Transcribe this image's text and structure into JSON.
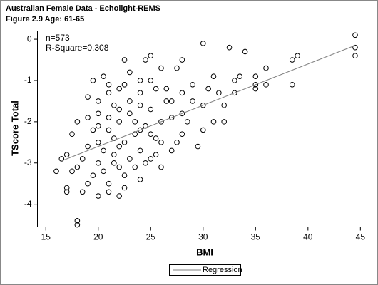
{
  "chart_data": {
    "type": "scatter",
    "title": "Australian Female Data - Echolight-REMS",
    "subtitle": "Figure 2.9 Age: 61-65",
    "annotations": [
      "n=573",
      "R-Square=0.308"
    ],
    "x_label": "BMI",
    "y_label": "TScore Total",
    "xlim": [
      14.2,
      46.1
    ],
    "ylim": [
      -4.55,
      0.2
    ],
    "xticks": [
      15,
      20,
      25,
      30,
      35,
      40,
      45
    ],
    "yticks": [
      0,
      -1,
      -2,
      -3,
      -4
    ],
    "color": "#000000",
    "x": [
      18,
      18,
      16,
      17,
      17,
      18.5,
      20,
      44.5,
      44.5,
      44.5,
      39,
      38.5,
      38.5,
      36,
      35,
      35,
      34,
      32.5,
      30,
      31,
      33,
      31,
      32,
      30,
      29,
      28,
      27.5,
      26,
      25,
      24.5,
      22.5,
      27,
      26,
      24,
      22,
      21,
      16.5,
      17,
      17.5,
      18,
      19,
      19.5,
      20.5,
      21,
      22,
      23,
      24,
      25.5,
      26.5,
      28,
      29,
      30,
      31.5,
      33.5,
      28.5,
      27.5,
      25,
      23.5,
      22.5,
      21.5,
      20.5,
      19.5,
      19,
      18.5,
      20,
      21,
      22,
      23,
      24,
      25,
      26,
      27,
      28,
      29.5,
      20,
      21.5,
      22.5,
      23.5,
      24.5,
      25.5,
      20.5,
      21.5,
      22,
      23,
      24,
      25,
      19.5,
      18,
      17.5,
      19,
      21,
      22.5,
      24,
      23,
      22,
      21,
      20,
      26.5,
      27,
      28,
      30.5,
      32,
      33,
      35,
      36,
      26,
      25.5,
      24.5,
      21.5,
      20,
      22,
      23.5,
      24,
      25,
      22.5,
      21,
      20,
      19
    ],
    "values": [
      -4.4,
      -4.5,
      -3.2,
      -3.6,
      -3.7,
      -3.7,
      -3.8,
      0.1,
      -0.2,
      -0.4,
      -0.4,
      -0.5,
      -1.1,
      -0.7,
      -1.1,
      -1.2,
      -0.3,
      -0.2,
      -0.1,
      -0.9,
      -1.3,
      -2.0,
      -2.0,
      -2.2,
      -1.1,
      -0.5,
      -0.7,
      -0.7,
      -0.4,
      -0.5,
      -0.5,
      -2.7,
      -3.1,
      -3.4,
      -3.8,
      -3.7,
      -2.9,
      -2.8,
      -2.3,
      -2.0,
      -1.4,
      -1.0,
      -0.9,
      -1.3,
      -1.2,
      -0.8,
      -1.0,
      -1.2,
      -1.5,
      -1.8,
      -1.5,
      -1.6,
      -1.3,
      -0.9,
      -2.0,
      -2.5,
      -2.9,
      -3.1,
      -3.3,
      -3.0,
      -3.2,
      -3.3,
      -2.6,
      -2.9,
      -2.5,
      -2.2,
      -2.0,
      -1.8,
      -1.6,
      -1.7,
      -2.0,
      -1.9,
      -2.3,
      -2.6,
      -1.8,
      -1.6,
      -2.5,
      -2.3,
      -2.1,
      -2.4,
      -2.7,
      -2.8,
      -2.6,
      -2.9,
      -2.7,
      -2.3,
      -2.2,
      -3.1,
      -3.2,
      -3.5,
      -3.5,
      -3.6,
      -2.2,
      -1.5,
      -1.7,
      -1.9,
      -2.1,
      -1.2,
      -1.5,
      -1.3,
      -1.2,
      -1.6,
      -1.0,
      -0.9,
      -1.1,
      -2.5,
      -2.8,
      -3.0,
      -2.4,
      -3.0,
      -3.1,
      -2.0,
      -1.3,
      -1.0,
      -1.1,
      -1.1,
      -1.5,
      -1.9
    ],
    "regression": {
      "name": "Regression",
      "color": "#808080",
      "x": [
        16.5,
        44.5
      ],
      "values": [
        -2.95,
        -0.15
      ]
    },
    "legend_position": "bottom"
  }
}
